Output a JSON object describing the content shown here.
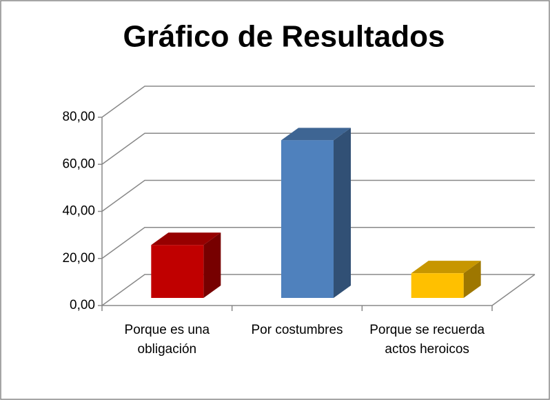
{
  "chart_data": {
    "type": "bar3d",
    "title": "Gráfico de Resultados",
    "categories": [
      "Porque es una obligación",
      "Por costumbres",
      "Porque se recuerda actos heroicos"
    ],
    "values": [
      22.5,
      67,
      10.5
    ],
    "colors": [
      "#c00000",
      "#4f81bd",
      "#ffc000"
    ],
    "ylim": [
      0,
      80
    ],
    "yticks": [
      {
        "value": 0,
        "label": "0,00"
      },
      {
        "value": 20,
        "label": "20,00"
      },
      {
        "value": 40,
        "label": "40,00"
      },
      {
        "value": 60,
        "label": "60,00"
      },
      {
        "value": 80,
        "label": "80,00"
      }
    ],
    "grid": true
  }
}
